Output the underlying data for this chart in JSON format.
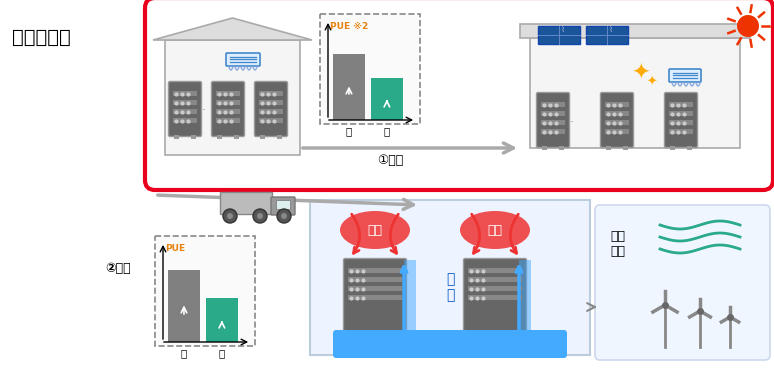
{
  "title": "イメージ図",
  "label_renovation": "①改修",
  "label_relocation": "②移設",
  "pue_label_top": "PUE ※2",
  "pue_label_bottom": "PUE",
  "before_label": "前",
  "after_label": "後",
  "red_border_color": "#e8001c",
  "bg_color": "#ffffff",
  "bar_gray": "#808080",
  "bar_teal": "#2aaa88",
  "server_color": "#666666",
  "server_edge": "#999999",
  "roof_color": "#dddddd",
  "roof_edge": "#aaaaaa",
  "wall_color": "#f5f5f5",
  "text_color": "#000000",
  "orange_text": "#e8820c",
  "blue_ac": "#4488cc",
  "solar_blue": "#1a5599",
  "sun_color": "#ee3300",
  "sun_ray_color": "#ee3300",
  "spark_color": "#ffaa00",
  "red_heat": "#ee3333",
  "cool_blue": "#44aaff",
  "wind_teal": "#2aaa88",
  "truck_color": "#888888",
  "arrow_gray": "#aaaaaa",
  "dash_color": "#888888"
}
